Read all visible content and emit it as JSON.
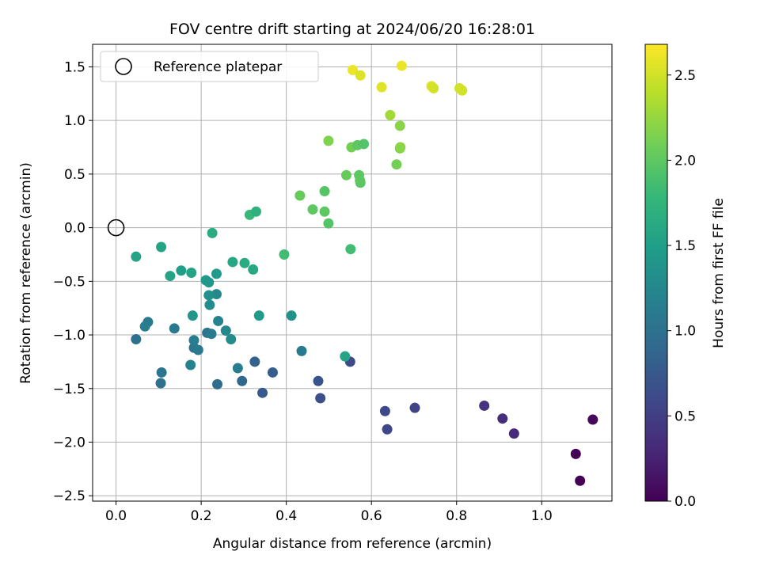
{
  "chart_data": {
    "type": "scatter",
    "title": "FOV centre drift starting at 2024/06/20 16:28:01",
    "xlabel": "Angular distance from reference (arcmin)",
    "ylabel": "Rotation from reference (arcmin)",
    "xlim": [
      -0.055,
      1.165
    ],
    "ylim": [
      -2.55,
      1.71
    ],
    "xticks": [
      0.0,
      0.2,
      0.4,
      0.6,
      0.8,
      1.0
    ],
    "xtick_labels": [
      "0.0",
      "0.2",
      "0.4",
      "0.6",
      "0.8",
      "1.0"
    ],
    "yticks": [
      -2.5,
      -2.0,
      -1.5,
      -1.0,
      -0.5,
      0.0,
      0.5,
      1.0,
      1.5
    ],
    "ytick_labels": [
      "−2.5",
      "−2.0",
      "−1.5",
      "−1.0",
      "−0.5",
      "0.0",
      "0.5",
      "1.0",
      "1.5"
    ],
    "grid": true,
    "legend": {
      "position": "top-left",
      "entries": [
        "Reference platepar"
      ]
    },
    "reference_point": {
      "name": "Reference platepar",
      "x": 0.0,
      "y": 0.0
    },
    "colorbar": {
      "label": "Hours from first FF file",
      "range": [
        0.0,
        2.68
      ],
      "ticks": [
        0.0,
        0.5,
        1.0,
        1.5,
        2.0,
        2.5
      ],
      "tick_labels": [
        "0.0",
        "0.5",
        "1.0",
        "1.5",
        "2.0",
        "2.5"
      ],
      "colormap": "viridis"
    },
    "colormap_stops": [
      "#440154",
      "#482878",
      "#3e4989",
      "#31688e",
      "#26828e",
      "#1f9e89",
      "#35b779",
      "#6ece58",
      "#b5de2b",
      "#fde725"
    ],
    "series": [
      {
        "points": [
          [
            1.12,
            -1.79,
            0.05
          ],
          [
            1.08,
            -2.11,
            0.02
          ],
          [
            1.09,
            -2.36,
            0.0
          ],
          [
            0.935,
            -1.92,
            0.3
          ],
          [
            0.908,
            -1.78,
            0.35
          ],
          [
            0.865,
            -1.66,
            0.4
          ],
          [
            0.702,
            -1.68,
            0.55
          ],
          [
            0.637,
            -1.88,
            0.58
          ],
          [
            0.632,
            -1.71,
            0.6
          ],
          [
            0.55,
            -1.25,
            0.62
          ],
          [
            0.48,
            -1.59,
            0.65
          ],
          [
            0.475,
            -1.43,
            0.7
          ],
          [
            0.344,
            -1.54,
            0.75
          ],
          [
            0.368,
            -1.35,
            0.8
          ],
          [
            0.326,
            -1.25,
            0.85
          ],
          [
            0.296,
            -1.43,
            0.9
          ],
          [
            0.238,
            -1.46,
            0.95
          ],
          [
            0.105,
            -1.45,
            1.0
          ],
          [
            0.107,
            -1.35,
            1.05
          ],
          [
            0.047,
            -1.04,
            1.0
          ],
          [
            0.436,
            -1.15,
            1.1
          ],
          [
            0.286,
            -1.31,
            1.15
          ],
          [
            0.175,
            -1.28,
            1.2
          ],
          [
            0.183,
            -1.12,
            1.05
          ],
          [
            0.193,
            -1.14,
            1.1
          ],
          [
            0.183,
            -1.05,
            1.15
          ],
          [
            0.214,
            -0.98,
            1.05
          ],
          [
            0.224,
            -0.99,
            1.1
          ],
          [
            0.075,
            -0.88,
            1.1
          ],
          [
            0.068,
            -0.92,
            1.15
          ],
          [
            0.137,
            -0.94,
            1.1
          ],
          [
            0.24,
            -0.87,
            1.2
          ],
          [
            0.258,
            -0.96,
            1.25
          ],
          [
            0.27,
            -1.04,
            1.3
          ],
          [
            0.236,
            -0.62,
            1.25
          ],
          [
            0.22,
            -0.72,
            1.3
          ],
          [
            0.218,
            -0.63,
            1.35
          ],
          [
            0.18,
            -0.82,
            1.4
          ],
          [
            0.336,
            -0.82,
            1.45
          ],
          [
            0.412,
            -0.82,
            1.35
          ],
          [
            0.538,
            -1.2,
            1.55
          ],
          [
            0.211,
            -0.49,
            1.45
          ],
          [
            0.218,
            -0.51,
            1.4
          ],
          [
            0.236,
            -0.43,
            1.45
          ],
          [
            0.153,
            -0.4,
            1.5
          ],
          [
            0.177,
            -0.42,
            1.55
          ],
          [
            0.127,
            -0.45,
            1.55
          ],
          [
            0.047,
            -0.27,
            1.55
          ],
          [
            0.106,
            -0.18,
            1.55
          ],
          [
            0.274,
            -0.32,
            1.6
          ],
          [
            0.302,
            -0.33,
            1.65
          ],
          [
            0.322,
            -0.39,
            1.6
          ],
          [
            0.226,
            -0.05,
            1.65
          ],
          [
            0.395,
            -0.25,
            1.85
          ],
          [
            0.551,
            -0.2,
            1.85
          ],
          [
            0.314,
            0.12,
            1.8
          ],
          [
            0.329,
            0.15,
            1.7
          ],
          [
            0.499,
            0.04,
            1.95
          ],
          [
            0.462,
            0.17,
            2.0
          ],
          [
            0.49,
            0.15,
            2.0
          ],
          [
            0.432,
            0.3,
            2.05
          ],
          [
            0.49,
            0.34,
            1.95
          ],
          [
            0.541,
            0.49,
            2.05
          ],
          [
            0.571,
            0.49,
            2.0
          ],
          [
            0.574,
            0.42,
            1.95
          ],
          [
            0.573,
            0.44,
            2.0
          ],
          [
            0.659,
            0.59,
            2.1
          ],
          [
            0.553,
            0.75,
            2.1
          ],
          [
            0.567,
            0.77,
            2.0
          ],
          [
            0.582,
            0.78,
            1.95
          ],
          [
            0.499,
            0.81,
            2.15
          ],
          [
            0.667,
            0.74,
            2.15
          ],
          [
            0.668,
            0.75,
            2.2
          ],
          [
            0.667,
            0.95,
            2.2
          ],
          [
            0.644,
            1.05,
            2.3
          ],
          [
            0.556,
            1.47,
            2.6
          ],
          [
            0.574,
            1.42,
            2.55
          ],
          [
            0.624,
            1.31,
            2.55
          ],
          [
            0.671,
            1.51,
            2.6
          ],
          [
            0.741,
            1.32,
            2.55
          ],
          [
            0.746,
            1.3,
            2.5
          ],
          [
            0.807,
            1.3,
            2.5
          ],
          [
            0.813,
            1.28,
            2.5
          ]
        ]
      }
    ]
  }
}
